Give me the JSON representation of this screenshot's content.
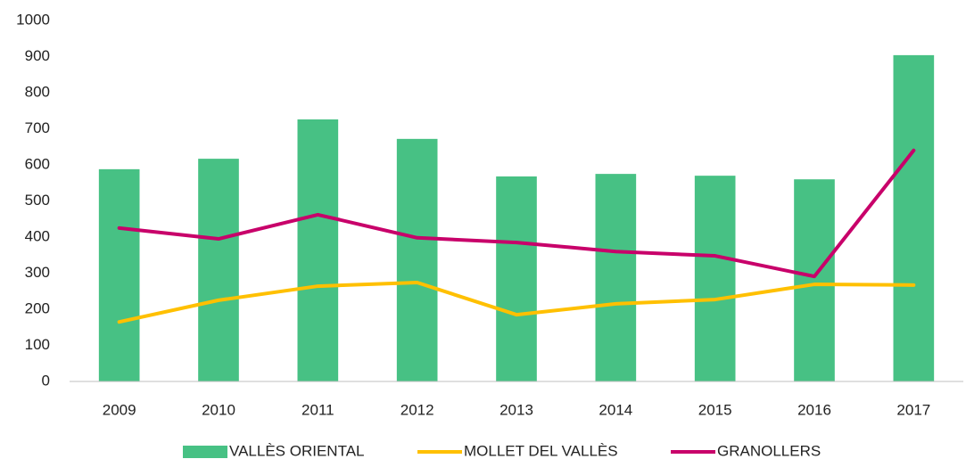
{
  "chart_data": {
    "type": "bar",
    "categories": [
      "2009",
      "2010",
      "2011",
      "2012",
      "2013",
      "2014",
      "2015",
      "2016",
      "2017"
    ],
    "series": [
      {
        "name": "VALLÈS ORIENTAL",
        "type": "bar",
        "color": "#47c184",
        "values": [
          588,
          617,
          726,
          672,
          568,
          575,
          570,
          560,
          904
        ]
      },
      {
        "name": "MOLLET DEL VALLÈS",
        "type": "line",
        "color": "#ffc000",
        "values": [
          165,
          225,
          264,
          274,
          185,
          215,
          227,
          269,
          267
        ]
      },
      {
        "name": "GRANOLLERS",
        "type": "line",
        "color": "#c8006a",
        "values": [
          425,
          395,
          462,
          398,
          385,
          360,
          348,
          291,
          640
        ]
      }
    ],
    "ylim": [
      0,
      1000
    ],
    "yticks": [
      0,
      100,
      200,
      300,
      400,
      500,
      600,
      700,
      800,
      900,
      1000
    ],
    "grid": false,
    "legend": "bottom"
  }
}
